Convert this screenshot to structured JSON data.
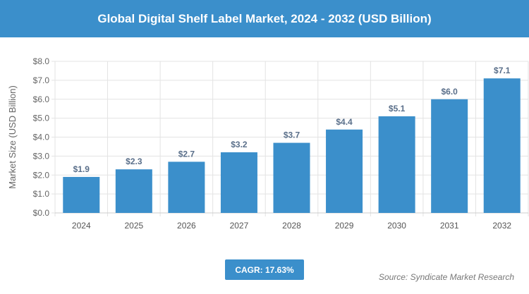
{
  "header": {
    "title": "Global Digital Shelf Label Market, 2024 - 2032 (USD Billion)"
  },
  "chart_data": {
    "type": "bar",
    "title": "Global Digital Shelf Label Market, 2024 - 2032 (USD Billion)",
    "categories": [
      "2024",
      "2025",
      "2026",
      "2027",
      "2028",
      "2029",
      "2030",
      "2031",
      "2032"
    ],
    "values": [
      1.9,
      2.3,
      2.7,
      3.2,
      3.7,
      4.4,
      5.1,
      6.0,
      7.1
    ],
    "data_labels": [
      "$1.9",
      "$2.3",
      "$2.7",
      "$3.2",
      "$3.7",
      "$4.4",
      "$5.1",
      "$6.0",
      "$7.1"
    ],
    "ylabel": "Market Size (USD Billion)",
    "xlabel": "",
    "ylim": [
      0,
      8
    ],
    "yticks": [
      "$0.0",
      "$1.0",
      "$2.0",
      "$3.0",
      "$4.0",
      "$5.0",
      "$6.0",
      "$7.0",
      "$8.0"
    ],
    "grid": true,
    "bar_color": "#3b8fcb"
  },
  "footer": {
    "cagr": "CAGR: 17.63%",
    "source": "Source: Syndicate Market Research"
  }
}
